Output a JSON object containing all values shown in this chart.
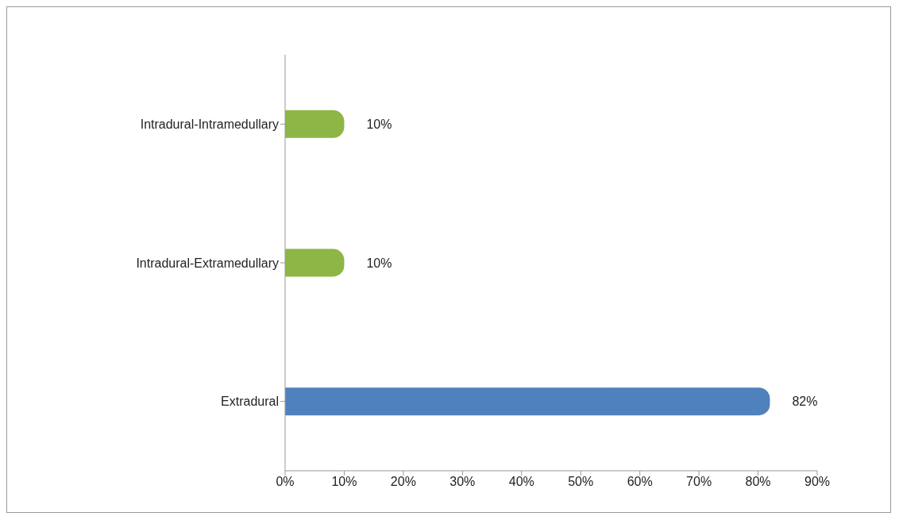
{
  "chart_data": {
    "type": "bar",
    "orientation": "horizontal",
    "categories": [
      "Intradural-Intramedullary",
      "Intradural-Extramedullary",
      "Extradural"
    ],
    "values": [
      10,
      10,
      82
    ],
    "colors": [
      "#8db646",
      "#8db646",
      "#4f81bd"
    ],
    "value_labels": [
      "10%",
      "10%",
      "82%"
    ],
    "xlim": [
      0,
      90
    ],
    "xticks": [
      {
        "value": 0,
        "label": "0%"
      },
      {
        "value": 10,
        "label": "10%"
      },
      {
        "value": 20,
        "label": "20%"
      },
      {
        "value": 30,
        "label": "30%"
      },
      {
        "value": 40,
        "label": "40%"
      },
      {
        "value": 50,
        "label": "50%"
      },
      {
        "value": 60,
        "label": "60%"
      },
      {
        "value": 70,
        "label": "70%"
      },
      {
        "value": 80,
        "label": "80%"
      },
      {
        "value": 90,
        "label": "90%"
      }
    ],
    "grid": false
  }
}
